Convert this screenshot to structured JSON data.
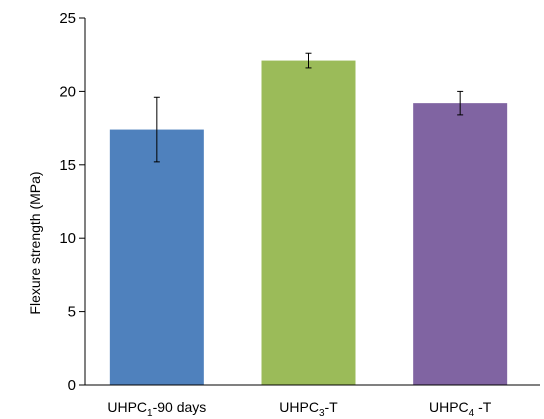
{
  "chart_data": {
    "type": "bar",
    "title": "",
    "xlabel": "",
    "ylabel": "Flexure strength (MPa)",
    "ylim": [
      0,
      25
    ],
    "yticks": [
      0,
      5,
      10,
      15,
      20,
      25
    ],
    "grid": false,
    "legend": "none",
    "categories": [
      {
        "base": "UHPC",
        "sub": "1",
        "suffix": "-90 days"
      },
      {
        "base": "UHPC",
        "sub": "3",
        "suffix": "-T"
      },
      {
        "base": "UHPC",
        "sub": "4",
        "suffix": " -T"
      }
    ],
    "values": [
      17.4,
      22.1,
      19.2
    ],
    "error_low": [
      2.2,
      0.5,
      0.8
    ],
    "error_high": [
      2.2,
      0.5,
      0.8
    ],
    "colors": [
      "#4f81bd",
      "#9bbb59",
      "#8064a2"
    ]
  }
}
